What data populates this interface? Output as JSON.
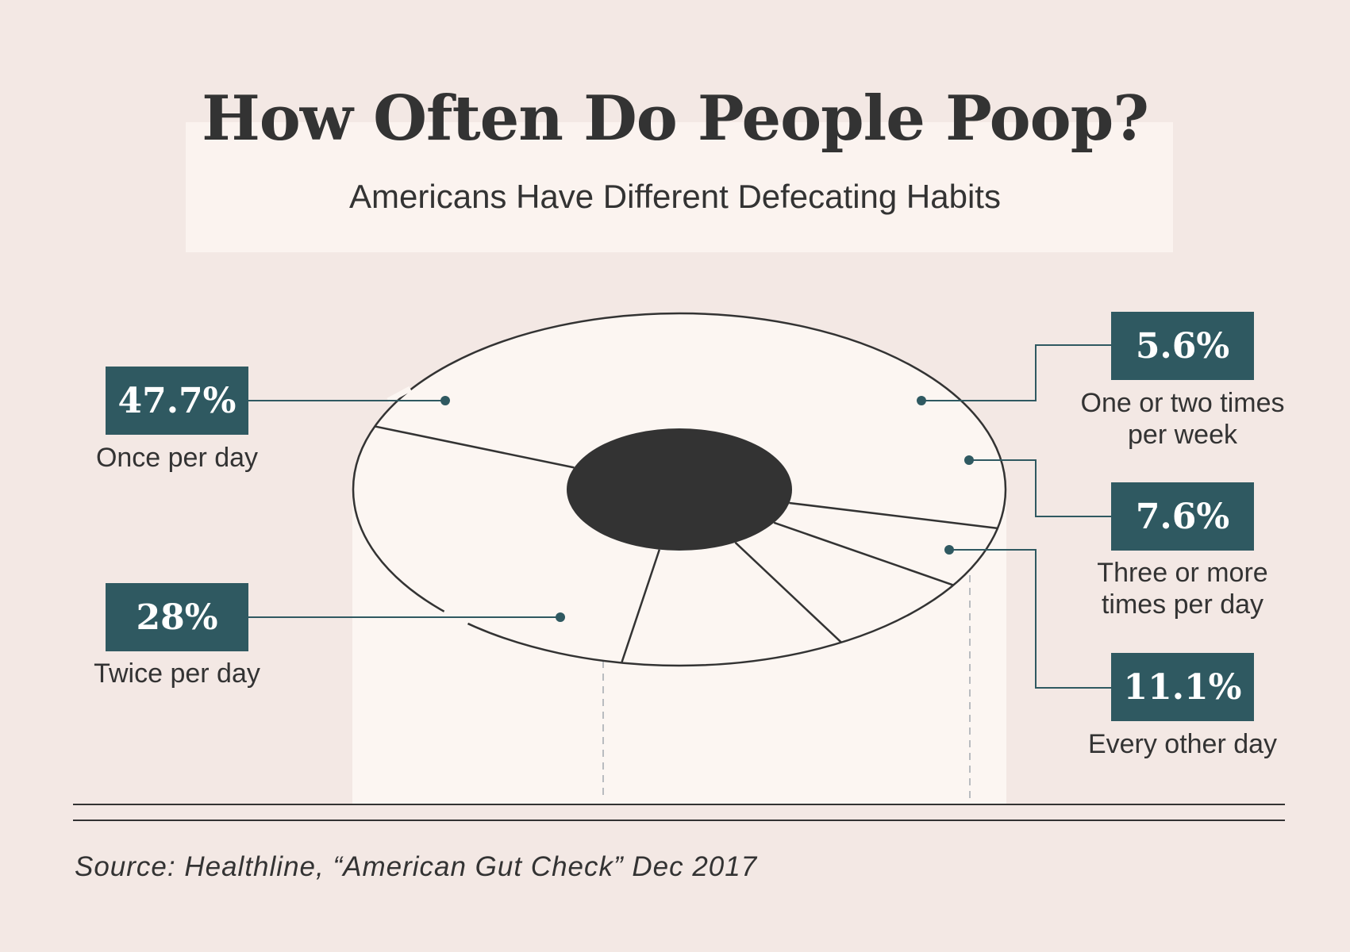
{
  "header": {
    "title": "How Often Do People Poop?",
    "subtitle": "Americans Have Different Defecating Habits"
  },
  "chart_data": {
    "type": "pie",
    "slices": [
      {
        "value": "47.7%",
        "label": "Once per day"
      },
      {
        "value": "28%",
        "label": "Twice per day"
      },
      {
        "value": "5.6%",
        "label": "One or two times per week"
      },
      {
        "value": "7.6%",
        "label": "Three or more times per day"
      },
      {
        "value": "11.1%",
        "label": "Every other day"
      }
    ],
    "values": [
      47.7,
      28,
      5.6,
      7.6,
      11.1
    ]
  },
  "footer": {
    "source": "Source: Healthline, “American Gut Check” Dec 2017"
  },
  "colors": {
    "badge": "#2f5961",
    "background": "#f3e8e4",
    "roll": "#fcf6f2",
    "ink": "#333333"
  }
}
